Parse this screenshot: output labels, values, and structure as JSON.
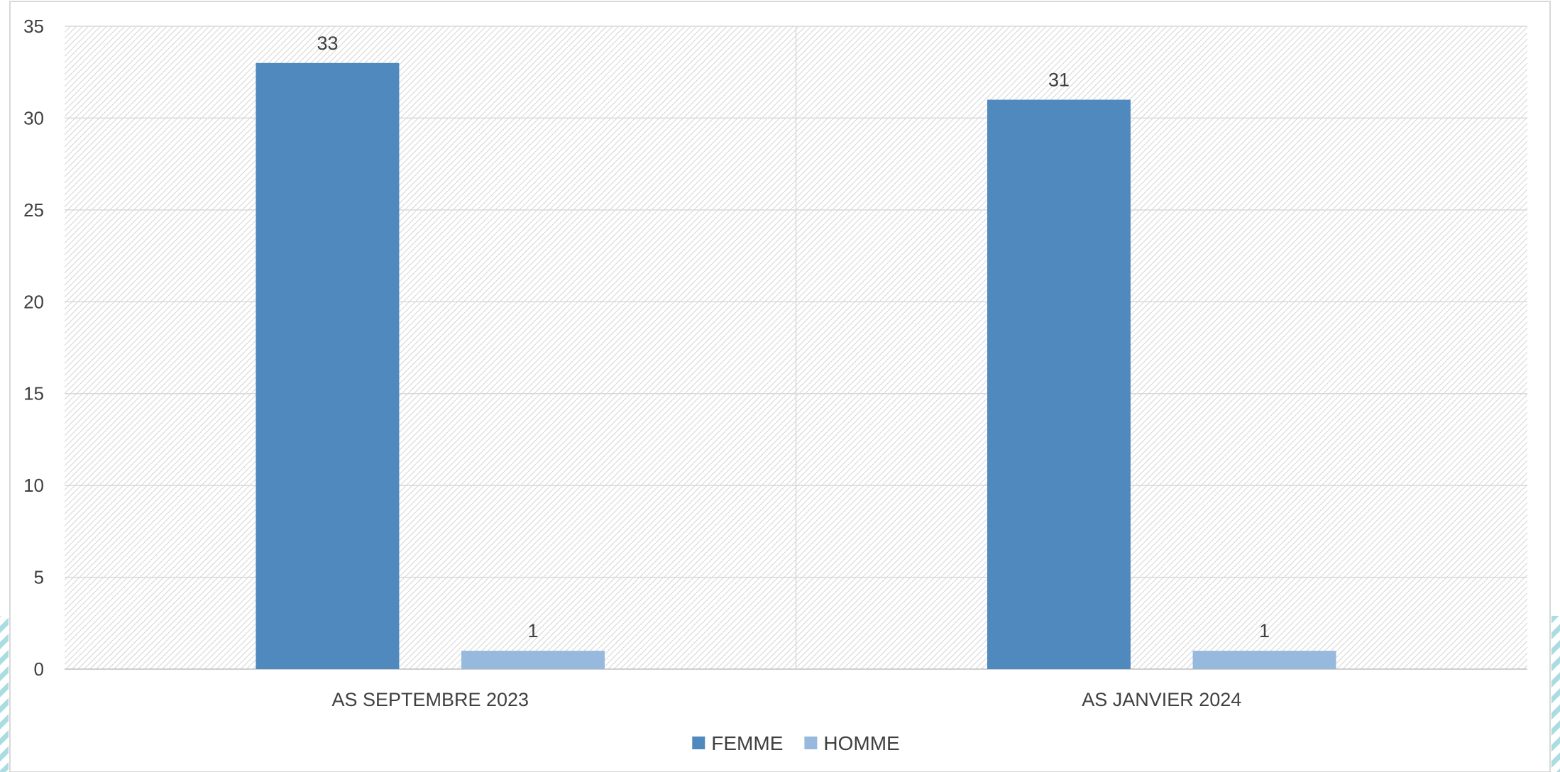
{
  "chart_data": {
    "type": "bar",
    "categories": [
      "AS SEPTEMBRE 2023",
      "AS JANVIER 2024"
    ],
    "series": [
      {
        "name": "FEMME",
        "values": [
          33,
          31
        ],
        "color": "#4f89bd"
      },
      {
        "name": "HOMME",
        "values": [
          1,
          1
        ],
        "color": "#98b9de"
      }
    ],
    "ylim": [
      0,
      35
    ],
    "yticks": [
      0,
      5,
      10,
      15,
      20,
      25,
      30,
      35
    ],
    "grid": true,
    "legend_position": "bottom-center",
    "data_labels": true
  }
}
